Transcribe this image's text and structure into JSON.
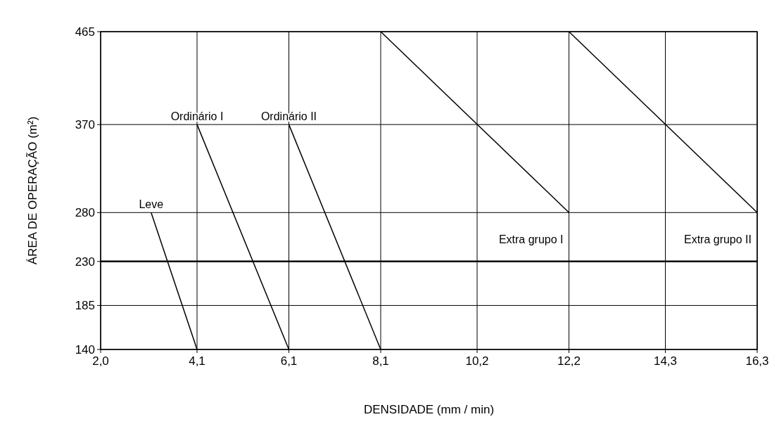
{
  "chart_data": {
    "type": "line",
    "xlabel": "DENSIDADE (mm / min)",
    "ylabel": "ÁREA DE OPERAÇÃO (m²)",
    "xlim": [
      2.0,
      16.3
    ],
    "xticks": [
      {
        "value": 2.0,
        "label": "2,0"
      },
      {
        "value": 4.1,
        "label": "4,1"
      },
      {
        "value": 6.1,
        "label": "6,1"
      },
      {
        "value": 8.1,
        "label": "8,1"
      },
      {
        "value": 10.2,
        "label": "10,2"
      },
      {
        "value": 12.2,
        "label": "12,2"
      },
      {
        "value": 14.3,
        "label": "14,3"
      },
      {
        "value": 16.3,
        "label": "16,3"
      }
    ],
    "ylim": [
      140,
      465
    ],
    "yticks": [
      140,
      185,
      230,
      280,
      370,
      465
    ],
    "grid": true,
    "marker": "none",
    "line_style": "solid",
    "series": [
      {
        "name": "Leve",
        "color": "#000000",
        "x": [
          3.1,
          4.1
        ],
        "values": [
          280,
          140
        ]
      },
      {
        "name": "Ordinário I",
        "color": "#000000",
        "x": [
          4.1,
          6.1
        ],
        "values": [
          370,
          140
        ]
      },
      {
        "name": "Ordinário II",
        "color": "#000000",
        "x": [
          6.1,
          8.1
        ],
        "values": [
          370,
          140
        ]
      },
      {
        "name": "Extra grupo I",
        "color": "#000000",
        "x": [
          8.1,
          12.2
        ],
        "values": [
          465,
          280
        ]
      },
      {
        "name": "Extra grupo II",
        "color": "#000000",
        "x": [
          12.2,
          16.3
        ],
        "values": [
          465,
          280
        ]
      }
    ],
    "ref_lines": [
      {
        "axis": "y",
        "value": 230,
        "color": "#000000"
      }
    ]
  }
}
